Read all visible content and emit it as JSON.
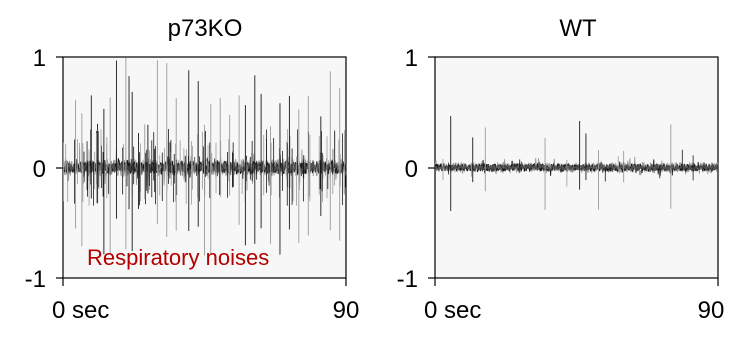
{
  "colors": {
    "plot_background": "#f7f7f7",
    "trace_dark": "#1a1a1a",
    "trace_mid": "#555555",
    "trace_light": "#9a9a9a",
    "annotation": "#b30000"
  },
  "chart_data": [
    {
      "type": "line",
      "title": "p73KO",
      "xlabel": "",
      "ylabel": "",
      "xlim": [
        0,
        90
      ],
      "ylim": [
        -1,
        1
      ],
      "x_tick_labels": [
        "0 sec",
        "90"
      ],
      "y_tick_labels": [
        "1",
        "0",
        "-1"
      ],
      "y_ticks": [
        1,
        0,
        -1
      ],
      "grid": false,
      "annotation": "Respiratory noises",
      "series": [
        {
          "baseline_amplitude": 0.06,
          "spike_count": 160,
          "spike_max": 1.0
        }
      ],
      "large_spikes_x": [
        4,
        6,
        9,
        11,
        13,
        15,
        17,
        20,
        21,
        22,
        24,
        26,
        27,
        30,
        33,
        36,
        40,
        43,
        45,
        47,
        50,
        53,
        56,
        58,
        61,
        63,
        66,
        69,
        72,
        75,
        78,
        82,
        85,
        88
      ]
    },
    {
      "type": "line",
      "title": "WT",
      "xlabel": "",
      "ylabel": "",
      "xlim": [
        0,
        90
      ],
      "ylim": [
        -1,
        1
      ],
      "x_tick_labels": [
        "0 sec",
        "90"
      ],
      "y_tick_labels": [
        "1",
        "0",
        "-1"
      ],
      "y_ticks": [
        1,
        0,
        -1
      ],
      "grid": false,
      "annotation": "",
      "series": [
        {
          "baseline_amplitude": 0.035,
          "spike_count": 10,
          "spike_max": 0.5
        }
      ],
      "large_spikes_x": [
        5,
        12,
        16,
        35,
        46,
        48,
        52,
        60,
        75
      ]
    }
  ]
}
